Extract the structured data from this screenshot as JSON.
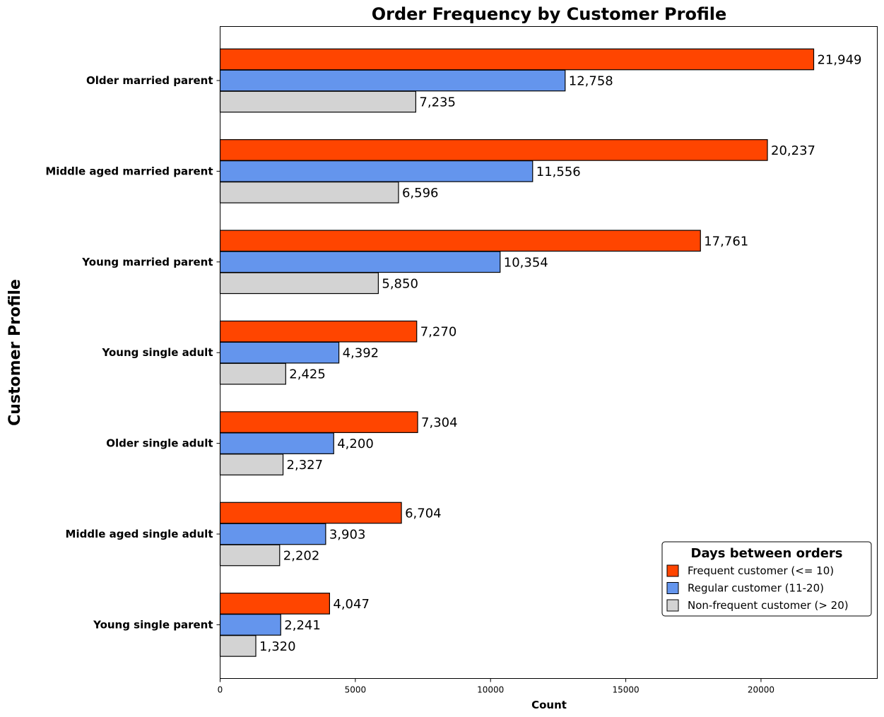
{
  "chart_data": {
    "type": "bar",
    "orientation": "horizontal",
    "title": "Order Frequency by Customer Profile",
    "xlabel": "Count",
    "ylabel": "Customer Profile",
    "xlim": [
      0,
      24300
    ],
    "xticks": [
      0,
      5000,
      10000,
      15000,
      20000
    ],
    "grid": false,
    "legend_title": "Days between orders",
    "legend_position": "lower-right",
    "categories": [
      "Older married parent",
      "Middle aged married parent",
      "Young married parent",
      "Young single adult",
      "Older single adult",
      "Middle aged single adult",
      "Young single parent"
    ],
    "series": [
      {
        "name": "Frequent customer (<= 10)",
        "color": "#ff4500",
        "values": [
          21949,
          20237,
          17761,
          7270,
          7304,
          6704,
          4047
        ],
        "labels": [
          "21,949",
          "20,237",
          "17,761",
          "7,270",
          "7,304",
          "6,704",
          "4,047"
        ]
      },
      {
        "name": "Regular customer (11-20)",
        "color": "#6495ed",
        "values": [
          12758,
          11556,
          10354,
          4392,
          4200,
          3903,
          2241
        ],
        "labels": [
          "12,758",
          "11,556",
          "10,354",
          "4,392",
          "4,200",
          "3,903",
          "2,241"
        ]
      },
      {
        "name": "Non-frequent customer (> 20)",
        "color": "#d3d3d3",
        "values": [
          7235,
          6596,
          5850,
          2425,
          2327,
          2202,
          1320
        ],
        "labels": [
          "7,235",
          "6,596",
          "5,850",
          "2,425",
          "2,327",
          "2,202",
          "1,320"
        ]
      }
    ]
  }
}
